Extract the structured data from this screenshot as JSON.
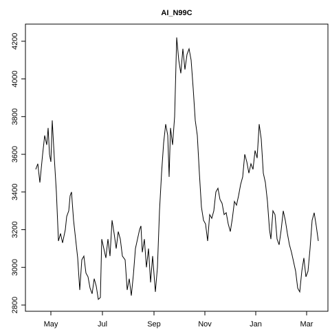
{
  "chart_data": {
    "type": "line",
    "title": "AI_N99C",
    "x": [
      -22,
      -19,
      -16,
      -12,
      -9,
      -6,
      -4,
      -2,
      0,
      2,
      5,
      8,
      11,
      14,
      17,
      21,
      23,
      26,
      28,
      30,
      33,
      36,
      39,
      42,
      45,
      48,
      51,
      54,
      57,
      60,
      63,
      66,
      69,
      72,
      74,
      77,
      80,
      83,
      86,
      89,
      92,
      95,
      98,
      101,
      104,
      108,
      111,
      114,
      117,
      120,
      123,
      126,
      129,
      131,
      133,
      136,
      139,
      142,
      145,
      148,
      152,
      155,
      158,
      161,
      164,
      167,
      170,
      172,
      174,
      177,
      180,
      183,
      186,
      189,
      192,
      195,
      198,
      201,
      204,
      207,
      210,
      213,
      216,
      219,
      222,
      225,
      228,
      231,
      234,
      237,
      240,
      243,
      246,
      249,
      252,
      255,
      258,
      261,
      264,
      267,
      270,
      273,
      276,
      279,
      282,
      285,
      288,
      291,
      294,
      297,
      300,
      303,
      306,
      309,
      312,
      315,
      318,
      320,
      323,
      326,
      329,
      332,
      335,
      338,
      341,
      344,
      347,
      350,
      353,
      356,
      359,
      362,
      365,
      368,
      371,
      374,
      377,
      380,
      383,
      386,
      389
    ],
    "series": [
      {
        "name": "AI_N99C",
        "color": "#000000",
        "values": [
          3520,
          3550,
          3450,
          3600,
          3700,
          3650,
          3740,
          3600,
          3560,
          3780,
          3580,
          3400,
          3140,
          3180,
          3130,
          3200,
          3270,
          3300,
          3380,
          3400,
          3250,
          3150,
          3050,
          2880,
          3040,
          3060,
          2970,
          2950,
          2890,
          2860,
          2940,
          2900,
          2830,
          2840,
          3150,
          3100,
          3050,
          3150,
          3060,
          3250,
          3180,
          3100,
          3190,
          3150,
          3060,
          3040,
          2880,
          2940,
          2850,
          2960,
          3100,
          3150,
          3200,
          3220,
          3080,
          3150,
          3000,
          3100,
          2920,
          3060,
          2870,
          3000,
          3300,
          3500,
          3660,
          3760,
          3700,
          3480,
          3740,
          3650,
          3800,
          4220,
          4100,
          4030,
          4160,
          4050,
          4130,
          4160,
          4100,
          3950,
          3780,
          3700,
          3500,
          3320,
          3250,
          3230,
          3140,
          3280,
          3260,
          3300,
          3400,
          3420,
          3360,
          3340,
          3280,
          3290,
          3230,
          3190,
          3260,
          3350,
          3330,
          3380,
          3440,
          3480,
          3600,
          3560,
          3500,
          3550,
          3520,
          3620,
          3580,
          3760,
          3680,
          3500,
          3450,
          3350,
          3200,
          3150,
          3300,
          3280,
          3150,
          3120,
          3200,
          3300,
          3250,
          3180,
          3120,
          3080,
          3030,
          2980,
          2890,
          2870,
          2980,
          3050,
          2950,
          2980,
          3100,
          3250,
          3290,
          3220,
          3140
        ]
      }
    ],
    "xlim": [
      -37,
      403
    ],
    "xticks": [
      {
        "value": 0,
        "label": "May"
      },
      {
        "value": 75,
        "label": "Jul"
      },
      {
        "value": 150,
        "label": "Sep"
      },
      {
        "value": 224,
        "label": "Nov"
      },
      {
        "value": 298,
        "label": "Jan"
      },
      {
        "value": 372,
        "label": "Mar"
      }
    ],
    "ylim": [
      2767,
      4291
    ],
    "yticks": [
      2800,
      3000,
      3200,
      3400,
      3600,
      3800,
      4000,
      4200
    ],
    "grid": false
  }
}
